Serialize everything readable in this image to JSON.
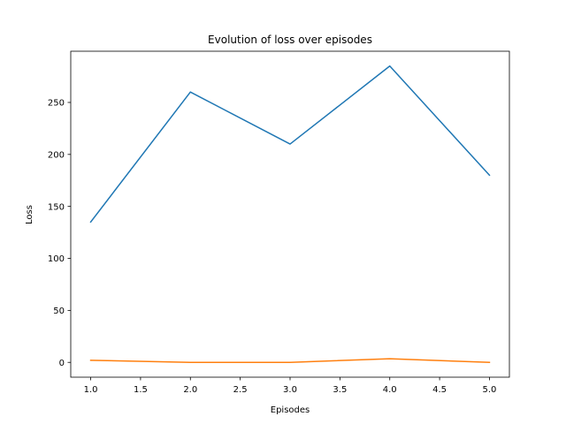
{
  "chart_data": {
    "type": "line",
    "title": "Evolution of loss over episodes",
    "xlabel": "Episodes",
    "ylabel": "Loss",
    "x": [
      1.0,
      2.0,
      3.0,
      4.0,
      5.0
    ],
    "xlim": [
      0.8,
      5.2
    ],
    "ylim": [
      -14.25,
      299.25
    ],
    "xticks": [
      1.0,
      1.5,
      2.0,
      2.5,
      3.0,
      3.5,
      4.0,
      4.5,
      5.0
    ],
    "xtick_labels": [
      "1.0",
      "1.5",
      "2.0",
      "2.5",
      "3.0",
      "3.5",
      "4.0",
      "4.5",
      "5.0"
    ],
    "yticks": [
      0,
      50,
      100,
      150,
      200,
      250
    ],
    "ytick_labels": [
      "0",
      "50",
      "100",
      "150",
      "200",
      "250"
    ],
    "grid": false,
    "series": [
      {
        "values": [
          135,
          260,
          210,
          285,
          180
        ],
        "color": "#1f77b4"
      },
      {
        "values": [
          2,
          0,
          0,
          3.5,
          0
        ],
        "color": "#ff7f0e"
      }
    ]
  }
}
